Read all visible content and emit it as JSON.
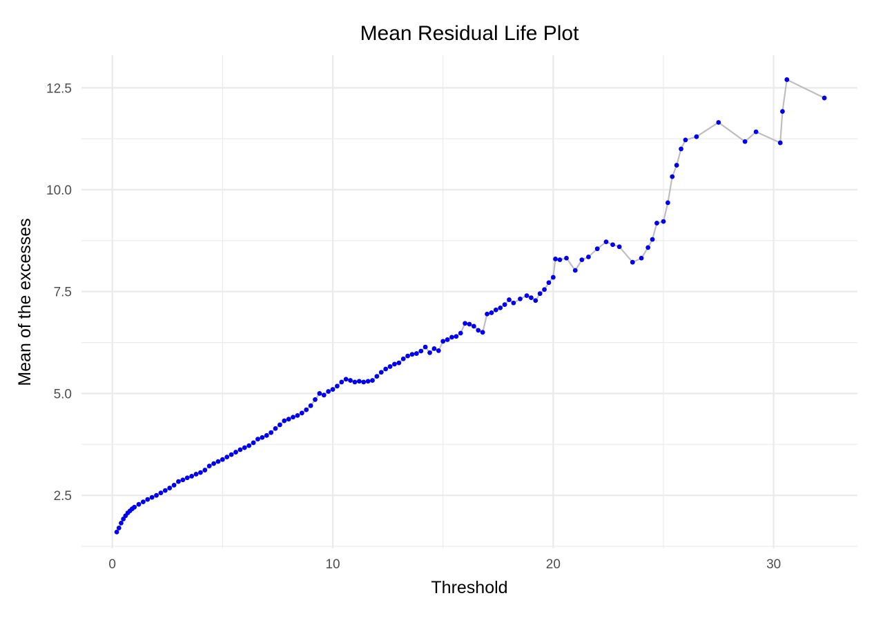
{
  "chart_data": {
    "type": "line",
    "title": "Mean Residual Life Plot",
    "xlabel": "Threshold",
    "ylabel": "Mean of the excesses",
    "xlim": [
      -1.4,
      33.8
    ],
    "ylim": [
      1.2,
      13.3
    ],
    "x_ticks": [
      0,
      10,
      20,
      30
    ],
    "x_tick_labels": [
      "0",
      "10",
      "20",
      "30"
    ],
    "y_ticks": [
      2.5,
      5.0,
      7.5,
      10.0,
      12.5
    ],
    "y_tick_labels": [
      "2.5",
      "5.0",
      "7.5",
      "10.0",
      "12.5"
    ],
    "grid": true,
    "colors": {
      "line": "#bebebe",
      "points": "#0000ee",
      "grid": "#ebebeb"
    },
    "series": [
      {
        "x": [
          0.2,
          0.3,
          0.4,
          0.5,
          0.6,
          0.7,
          0.8,
          0.9,
          1.0,
          1.2,
          1.4,
          1.6,
          1.8,
          2.0,
          2.2,
          2.4,
          2.6,
          2.8,
          3.0,
          3.2,
          3.4,
          3.6,
          3.8,
          4.0,
          4.2,
          4.4,
          4.6,
          4.8,
          5.0,
          5.2,
          5.4,
          5.6,
          5.8,
          6.0,
          6.2,
          6.4,
          6.6,
          6.8,
          7.0,
          7.2,
          7.4,
          7.6,
          7.8,
          8.0,
          8.2,
          8.4,
          8.6,
          8.8,
          9.0,
          9.2,
          9.4,
          9.6,
          9.8,
          10.0,
          10.2,
          10.4,
          10.6,
          10.8,
          11.0,
          11.2,
          11.4,
          11.6,
          11.8,
          12.0,
          12.2,
          12.4,
          12.6,
          12.8,
          13.0,
          13.2,
          13.4,
          13.6,
          13.8,
          14.0,
          14.2,
          14.4,
          14.6,
          14.8,
          15.0,
          15.2,
          15.4,
          15.6,
          15.8,
          16.0,
          16.2,
          16.4,
          16.6,
          16.8,
          17.0,
          17.2,
          17.4,
          17.6,
          17.8,
          18.0,
          18.2,
          18.5,
          18.8,
          19.0,
          19.2,
          19.4,
          19.6,
          19.8,
          20.0,
          20.1,
          20.3,
          20.6,
          21.0,
          21.3,
          21.6,
          22.0,
          22.4,
          22.7,
          23.0,
          23.6,
          24.0,
          24.3,
          24.5,
          24.7,
          25.0,
          25.2,
          25.4,
          25.6,
          25.8,
          26.0,
          26.5,
          27.5,
          28.7,
          29.2,
          30.3,
          30.4,
          30.6,
          32.3
        ],
        "y": [
          1.6,
          1.7,
          1.82,
          1.92,
          2.0,
          2.07,
          2.12,
          2.17,
          2.21,
          2.28,
          2.34,
          2.4,
          2.45,
          2.5,
          2.56,
          2.62,
          2.68,
          2.75,
          2.84,
          2.88,
          2.93,
          2.97,
          3.02,
          3.06,
          3.12,
          3.22,
          3.28,
          3.33,
          3.38,
          3.44,
          3.5,
          3.56,
          3.62,
          3.67,
          3.72,
          3.79,
          3.88,
          3.92,
          3.97,
          4.04,
          4.14,
          4.23,
          4.33,
          4.37,
          4.42,
          4.46,
          4.52,
          4.6,
          4.7,
          4.85,
          5.0,
          4.96,
          5.05,
          5.1,
          5.18,
          5.28,
          5.35,
          5.32,
          5.28,
          5.3,
          5.28,
          5.3,
          5.32,
          5.42,
          5.52,
          5.6,
          5.66,
          5.72,
          5.75,
          5.85,
          5.92,
          5.96,
          5.98,
          6.04,
          6.14,
          6.0,
          6.1,
          6.05,
          6.28,
          6.32,
          6.38,
          6.4,
          6.48,
          6.72,
          6.7,
          6.65,
          6.55,
          6.5,
          6.95,
          6.98,
          7.05,
          7.1,
          7.18,
          7.3,
          7.22,
          7.32,
          7.4,
          7.35,
          7.28,
          7.45,
          7.55,
          7.72,
          7.85,
          8.3,
          8.28,
          8.32,
          8.02,
          8.28,
          8.35,
          8.55,
          8.72,
          8.65,
          8.6,
          8.22,
          8.32,
          8.58,
          8.78,
          9.18,
          9.22,
          9.68,
          10.32,
          10.6,
          11.0,
          11.22,
          11.3,
          11.65,
          11.18,
          11.42,
          11.15,
          11.92,
          12.7,
          12.25
        ]
      }
    ]
  }
}
